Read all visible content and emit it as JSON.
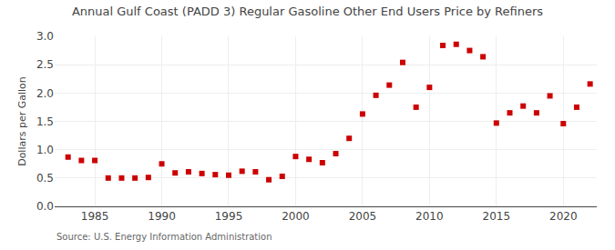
{
  "chart_data": {
    "type": "scatter",
    "title": "Annual Gulf Coast (PADD 3) Regular Gasoline Other End Users Price by Refiners",
    "ylabel": "Dollars per Gallon",
    "annotations": [
      "Source: U.S. Energy Information Administration"
    ],
    "x": [
      1983,
      1984,
      1985,
      1986,
      1987,
      1988,
      1989,
      1990,
      1991,
      1992,
      1993,
      1994,
      1995,
      1996,
      1997,
      1998,
      1999,
      2000,
      2001,
      2002,
      2003,
      2004,
      2005,
      2006,
      2007,
      2008,
      2009,
      2010,
      2011,
      2012,
      2013,
      2014,
      2015,
      2016,
      2017,
      2018,
      2019,
      2020,
      2021,
      2022
    ],
    "values": [
      0.87,
      0.81,
      0.81,
      0.5,
      0.5,
      0.5,
      0.51,
      0.75,
      0.59,
      0.61,
      0.58,
      0.56,
      0.55,
      0.62,
      0.61,
      0.47,
      0.53,
      0.88,
      0.83,
      0.77,
      0.93,
      1.2,
      1.63,
      1.96,
      2.14,
      2.54,
      1.75,
      2.1,
      2.84,
      2.86,
      2.75,
      2.64,
      1.47,
      1.65,
      1.77,
      1.65,
      1.95,
      1.46,
      1.75,
      2.16
    ],
    "color": "#cc0000",
    "marker": "square",
    "xlim": [
      1982,
      2022.5
    ],
    "xticks": [
      1985,
      1990,
      1995,
      2000,
      2005,
      2010,
      2015,
      2020
    ],
    "ylim": [
      0.0,
      3.0
    ],
    "yticks": [
      {
        "value": 0,
        "label": "0.0"
      },
      0.5,
      {
        "value": 1,
        "label": "1.0"
      },
      1.5,
      {
        "value": 2,
        "label": "2.0"
      },
      2.5,
      {
        "value": 3,
        "label": "3.0"
      }
    ],
    "grid": true
  }
}
